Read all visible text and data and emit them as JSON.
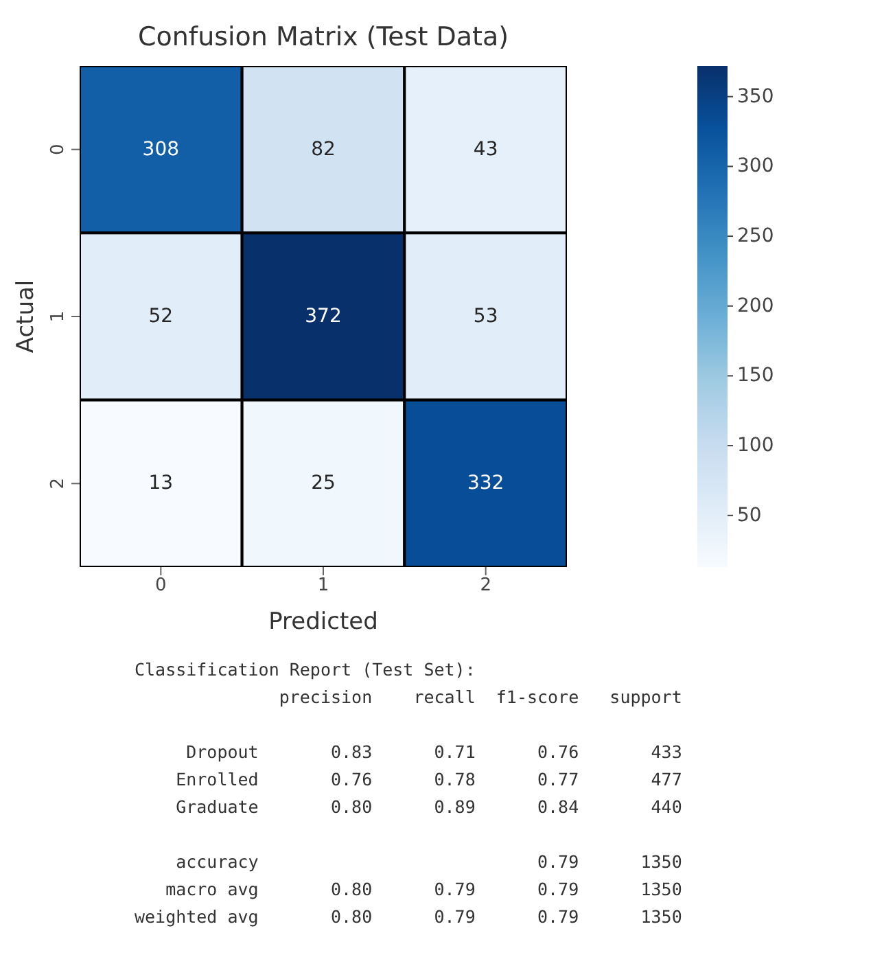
{
  "chart_data": [
    {
      "type": "heatmap",
      "title": "Confusion Matrix (Test Data)",
      "xlabel": "Predicted",
      "ylabel": "Actual",
      "categories": [
        "0",
        "1",
        "2"
      ],
      "y_categories": [
        "0",
        "1",
        "2"
      ],
      "cells": [
        [
          308,
          82,
          43
        ],
        [
          52,
          372,
          53
        ],
        [
          13,
          25,
          332
        ]
      ],
      "data_labels": true,
      "clim": [
        13,
        372
      ],
      "cticks": [
        50,
        100,
        150,
        200,
        250,
        300,
        350
      ]
    },
    {
      "type": "other",
      "title": "Classification Report (Test Set):",
      "annotations": [
        "              precision    recall  f1-score   support",
        "     Dropout       0.83      0.71      0.76       433",
        "    Enrolled       0.76      0.78      0.77       477",
        "    Graduate       0.80      0.89      0.84       440",
        "    accuracy                           0.79      1350",
        "   macro avg       0.80      0.79      0.79      1350",
        "weighted avg       0.80      0.79      0.79      1350"
      ]
    }
  ]
}
